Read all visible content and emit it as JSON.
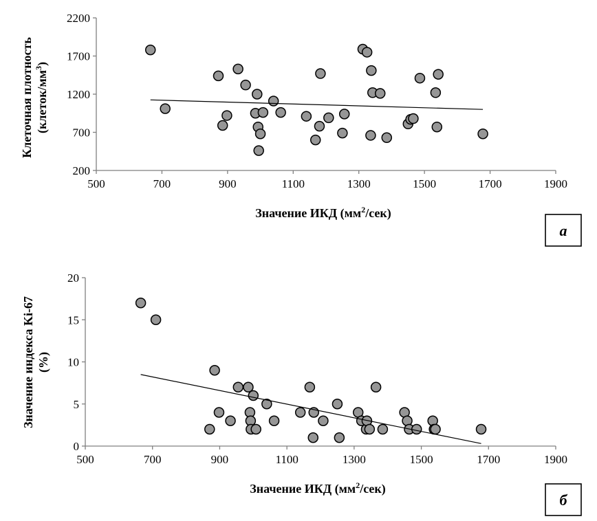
{
  "chart_data": [
    {
      "type": "scatter",
      "panel": "a",
      "panel_label": "а",
      "xlabel_main": "Значение ИКД (мм",
      "xlabel_sup": "2",
      "xlabel_tail": "/сек)",
      "ylabel_line1": "Клеточная плотность",
      "ylabel_line2_main": "(клеток/мм",
      "ylabel_line2_sup": "3",
      "ylabel_line2_tail": ")",
      "xlim": [
        500,
        1900
      ],
      "ylim": [
        200,
        2200
      ],
      "xticks": [
        500,
        700,
        900,
        1100,
        1300,
        1500,
        1700,
        1900
      ],
      "yticks": [
        200,
        700,
        1200,
        1700,
        2200
      ],
      "points": [
        {
          "x": 665,
          "y": 1780
        },
        {
          "x": 710,
          "y": 1010
        },
        {
          "x": 872,
          "y": 1440
        },
        {
          "x": 885,
          "y": 790
        },
        {
          "x": 898,
          "y": 920
        },
        {
          "x": 932,
          "y": 1530
        },
        {
          "x": 955,
          "y": 1320
        },
        {
          "x": 985,
          "y": 950
        },
        {
          "x": 990,
          "y": 1200
        },
        {
          "x": 993,
          "y": 770
        },
        {
          "x": 995,
          "y": 460
        },
        {
          "x": 1000,
          "y": 680
        },
        {
          "x": 1008,
          "y": 960
        },
        {
          "x": 1040,
          "y": 1110
        },
        {
          "x": 1062,
          "y": 960
        },
        {
          "x": 1140,
          "y": 910
        },
        {
          "x": 1168,
          "y": 600
        },
        {
          "x": 1180,
          "y": 780
        },
        {
          "x": 1183,
          "y": 1470
        },
        {
          "x": 1208,
          "y": 890
        },
        {
          "x": 1250,
          "y": 690
        },
        {
          "x": 1256,
          "y": 940
        },
        {
          "x": 1312,
          "y": 1790
        },
        {
          "x": 1325,
          "y": 1750
        },
        {
          "x": 1336,
          "y": 660
        },
        {
          "x": 1338,
          "y": 1510
        },
        {
          "x": 1342,
          "y": 1220
        },
        {
          "x": 1365,
          "y": 1210
        },
        {
          "x": 1385,
          "y": 630
        },
        {
          "x": 1450,
          "y": 810
        },
        {
          "x": 1458,
          "y": 870
        },
        {
          "x": 1466,
          "y": 880
        },
        {
          "x": 1486,
          "y": 1410
        },
        {
          "x": 1534,
          "y": 1220
        },
        {
          "x": 1538,
          "y": 770
        },
        {
          "x": 1542,
          "y": 1460
        },
        {
          "x": 1678,
          "y": 680
        }
      ],
      "trendline": {
        "x": [
          665,
          1678
        ],
        "y": [
          1125,
          1000
        ]
      }
    },
    {
      "type": "scatter",
      "panel": "b",
      "panel_label": "б",
      "xlabel_main": "Значение ИКД (мм",
      "xlabel_sup": "2",
      "xlabel_tail": "/сек)",
      "ylabel_line1": "Значение индекса Ki-67",
      "ylabel_line2_main": "(%)",
      "ylabel_line2_sup": "",
      "ylabel_line2_tail": "",
      "xlim": [
        500,
        1900
      ],
      "ylim": [
        0,
        20
      ],
      "xticks": [
        500,
        700,
        900,
        1100,
        1300,
        1500,
        1700,
        1900
      ],
      "yticks": [
        0,
        5,
        10,
        15,
        20
      ],
      "points": [
        {
          "x": 665,
          "y": 17
        },
        {
          "x": 710,
          "y": 15
        },
        {
          "x": 870,
          "y": 2
        },
        {
          "x": 885,
          "y": 9
        },
        {
          "x": 898,
          "y": 4
        },
        {
          "x": 932,
          "y": 3
        },
        {
          "x": 955,
          "y": 7
        },
        {
          "x": 985,
          "y": 7
        },
        {
          "x": 990,
          "y": 4
        },
        {
          "x": 992,
          "y": 3
        },
        {
          "x": 993,
          "y": 2
        },
        {
          "x": 1000,
          "y": 6
        },
        {
          "x": 1008,
          "y": 2
        },
        {
          "x": 1040,
          "y": 5
        },
        {
          "x": 1062,
          "y": 3
        },
        {
          "x": 1140,
          "y": 4
        },
        {
          "x": 1168,
          "y": 7
        },
        {
          "x": 1178,
          "y": 1
        },
        {
          "x": 1180,
          "y": 4
        },
        {
          "x": 1208,
          "y": 3
        },
        {
          "x": 1250,
          "y": 5
        },
        {
          "x": 1256,
          "y": 1
        },
        {
          "x": 1312,
          "y": 4
        },
        {
          "x": 1322,
          "y": 3
        },
        {
          "x": 1336,
          "y": 2
        },
        {
          "x": 1338,
          "y": 3
        },
        {
          "x": 1346,
          "y": 2
        },
        {
          "x": 1365,
          "y": 7
        },
        {
          "x": 1385,
          "y": 2
        },
        {
          "x": 1450,
          "y": 4
        },
        {
          "x": 1458,
          "y": 3
        },
        {
          "x": 1464,
          "y": 2
        },
        {
          "x": 1486,
          "y": 2
        },
        {
          "x": 1534,
          "y": 3
        },
        {
          "x": 1538,
          "y": 2
        },
        {
          "x": 1542,
          "y": 2
        },
        {
          "x": 1678,
          "y": 2
        }
      ],
      "trendline": {
        "x": [
          665,
          1678
        ],
        "y": [
          8.5,
          0.3
        ]
      }
    }
  ]
}
